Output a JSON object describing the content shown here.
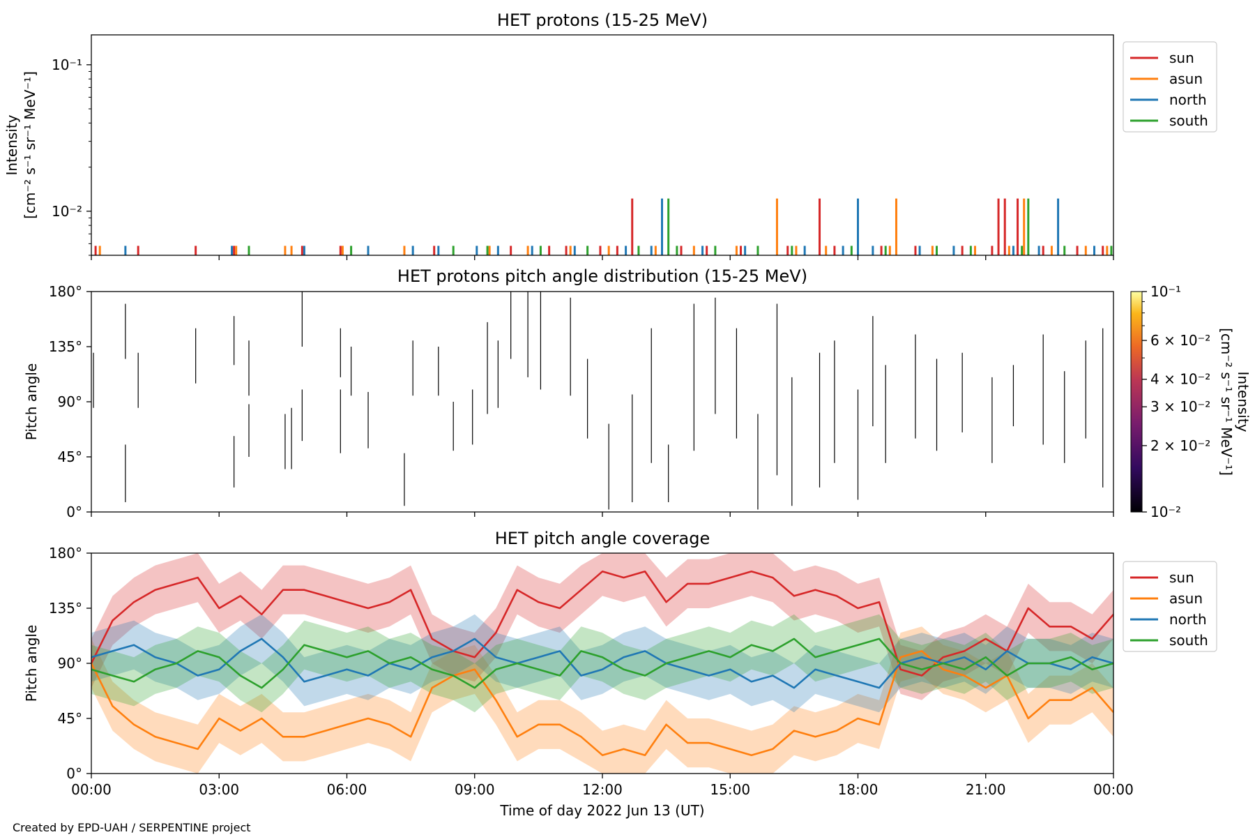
{
  "figure": {
    "credit": "Created by EPD-UAH / SERPENTINE project",
    "xlabel": "Time of day 2022 Jun 13 (UT)",
    "x_ticks": [
      "00:00",
      "03:00",
      "06:00",
      "09:00",
      "12:00",
      "15:00",
      "18:00",
      "21:00",
      "00:00"
    ],
    "x_range_hours": [
      0,
      24
    ]
  },
  "colors": {
    "sun": "#d62728",
    "asun": "#ff7f0e",
    "north": "#1f77b4",
    "south": "#2ca02c"
  },
  "chart_data": [
    {
      "type": "line",
      "title": "HET protons (15-25 MeV)",
      "ylabel_line1": "Intensity",
      "ylabel_line2": "[cm⁻² s⁻¹ sr⁻¹ MeV⁻¹]",
      "yscale": "log",
      "ylim": [
        0.005,
        0.16
      ],
      "y_ticks": [
        {
          "value": 0.1,
          "label": "10⁻¹"
        },
        {
          "value": 0.01,
          "label": "10⁻²"
        }
      ],
      "legend": [
        "sun",
        "asun",
        "north",
        "south"
      ],
      "legend_position": "outside-right-top",
      "spike_value": 0.0122,
      "base_value": 0.0058,
      "spikes": {
        "sun": [
          12.7,
          17.1,
          21.3,
          21.45,
          21.75
        ],
        "asun": [
          16.1,
          18.9,
          21.9
        ],
        "north": [
          13.4,
          18.0,
          22.7
        ],
        "south": [
          13.55,
          22.0
        ]
      },
      "base_events": {
        "sun": [
          0.1,
          1.1,
          2.45,
          3.35,
          4.95,
          5.85,
          8.05,
          9.85,
          10.75,
          11.15,
          11.95,
          12.35,
          13.85,
          14.45,
          15.25,
          16.35,
          17.45,
          18.55,
          19.35,
          20.45,
          21.15,
          22.35,
          23.15,
          23.75
        ],
        "asun": [
          0.2,
          3.4,
          4.55,
          4.7,
          5.9,
          7.35,
          9.35,
          10.25,
          11.25,
          12.15,
          13.25,
          14.15,
          15.15,
          16.55,
          17.25,
          18.75,
          19.75,
          20.75,
          21.55,
          22.55,
          23.35,
          23.85
        ],
        "north": [
          0.8,
          3.3,
          5.0,
          6.5,
          7.55,
          8.15,
          9.05,
          9.55,
          10.35,
          11.35,
          12.55,
          13.15,
          14.35,
          15.35,
          16.75,
          17.65,
          18.35,
          19.45,
          20.25,
          21.65,
          22.25,
          23.55
        ],
        "south": [
          3.7,
          6.1,
          8.5,
          9.3,
          10.55,
          11.65,
          12.85,
          13.75,
          14.65,
          15.65,
          16.45,
          17.85,
          18.65,
          19.85,
          20.65,
          21.85,
          22.85,
          23.95
        ]
      }
    },
    {
      "type": "heatmap",
      "title": "HET protons pitch angle distribution (15-25 MeV)",
      "ylabel": "Pitch angle",
      "ylim": [
        0,
        180
      ],
      "y_ticks": [
        "0°",
        "45°",
        "90°",
        "135°",
        "180°"
      ],
      "colorbar": {
        "label_line1": "Intensity",
        "label_line2": "[cm⁻² s⁻¹ sr⁻¹ MeV⁻¹]",
        "scale": "log",
        "range": [
          0.01,
          0.1
        ],
        "ticks": [
          {
            "value": 0.1,
            "label": "10⁻¹"
          },
          {
            "value": 0.06,
            "label": "6 × 10⁻²"
          },
          {
            "value": 0.04,
            "label": "4 × 10⁻²"
          },
          {
            "value": 0.03,
            "label": "3 × 10⁻²"
          },
          {
            "value": 0.02,
            "label": "2 × 10⁻²"
          },
          {
            "value": 0.01,
            "label": "10⁻²"
          }
        ]
      },
      "sample_segments": [
        [
          0.05,
          85,
          130
        ],
        [
          0.8,
          8,
          55
        ],
        [
          0.8,
          125,
          170
        ],
        [
          1.1,
          85,
          130
        ],
        [
          2.45,
          105,
          150
        ],
        [
          3.35,
          20,
          62
        ],
        [
          3.35,
          120,
          160
        ],
        [
          3.7,
          45,
          88
        ],
        [
          3.7,
          95,
          140
        ],
        [
          4.55,
          35,
          80
        ],
        [
          4.7,
          35,
          85
        ],
        [
          4.95,
          58,
          100
        ],
        [
          4.95,
          135,
          180
        ],
        [
          5.85,
          48,
          100
        ],
        [
          5.85,
          110,
          150
        ],
        [
          6.1,
          95,
          135
        ],
        [
          6.5,
          52,
          98
        ],
        [
          7.35,
          5,
          48
        ],
        [
          7.55,
          95,
          140
        ],
        [
          8.15,
          95,
          135
        ],
        [
          8.5,
          50,
          90
        ],
        [
          8.95,
          55,
          100
        ],
        [
          9.3,
          80,
          155
        ],
        [
          9.55,
          85,
          140
        ],
        [
          9.85,
          125,
          180
        ],
        [
          10.25,
          110,
          180
        ],
        [
          10.55,
          100,
          180
        ],
        [
          11.25,
          95,
          175
        ],
        [
          11.65,
          60,
          125
        ],
        [
          12.15,
          2,
          72
        ],
        [
          12.7,
          8,
          96
        ],
        [
          13.15,
          40,
          150
        ],
        [
          13.55,
          8,
          55
        ],
        [
          14.15,
          50,
          170
        ],
        [
          14.65,
          80,
          175
        ],
        [
          15.15,
          60,
          150
        ],
        [
          15.65,
          2,
          80
        ],
        [
          16.1,
          30,
          170
        ],
        [
          16.45,
          5,
          110
        ],
        [
          17.1,
          20,
          130
        ],
        [
          17.45,
          40,
          140
        ],
        [
          18.0,
          10,
          100
        ],
        [
          18.35,
          70,
          160
        ],
        [
          18.65,
          40,
          120
        ],
        [
          19.35,
          60,
          145
        ],
        [
          19.85,
          50,
          125
        ],
        [
          20.45,
          65,
          130
        ],
        [
          21.15,
          40,
          110
        ],
        [
          21.65,
          70,
          120
        ],
        [
          22.35,
          55,
          145
        ],
        [
          22.85,
          40,
          115
        ],
        [
          23.35,
          60,
          140
        ],
        [
          23.75,
          20,
          150
        ]
      ]
    },
    {
      "type": "area",
      "title": "HET pitch angle coverage",
      "ylabel": "Pitch angle",
      "ylim": [
        0,
        180
      ],
      "y_ticks": [
        "0°",
        "45°",
        "90°",
        "135°",
        "180°"
      ],
      "legend": [
        "sun",
        "asun",
        "north",
        "south"
      ],
      "legend_position": "outside-right-top",
      "band_halfwidth_deg": 20,
      "x": [
        0,
        0.5,
        1,
        1.5,
        2,
        2.5,
        3,
        3.5,
        4,
        4.5,
        5,
        5.5,
        6,
        6.5,
        7,
        7.5,
        8,
        8.5,
        9,
        9.5,
        10,
        10.5,
        11,
        11.5,
        12,
        12.5,
        13,
        13.5,
        14,
        14.5,
        15,
        15.5,
        16,
        16.5,
        17,
        17.5,
        18,
        18.5,
        19,
        19.5,
        20,
        20.5,
        21,
        21.5,
        22,
        22.5,
        23,
        23.5,
        24
      ],
      "series": [
        {
          "name": "sun",
          "values": [
            90,
            125,
            140,
            150,
            155,
            160,
            135,
            145,
            130,
            150,
            150,
            145,
            140,
            135,
            140,
            150,
            110,
            100,
            95,
            115,
            150,
            140,
            135,
            150,
            165,
            160,
            165,
            140,
            155,
            155,
            160,
            165,
            160,
            145,
            150,
            145,
            135,
            140,
            85,
            80,
            95,
            100,
            110,
            100,
            135,
            120,
            120,
            110,
            130
          ]
        },
        {
          "name": "asun",
          "values": [
            90,
            55,
            40,
            30,
            25,
            20,
            45,
            35,
            45,
            30,
            30,
            35,
            40,
            45,
            40,
            30,
            70,
            80,
            85,
            60,
            30,
            40,
            40,
            30,
            15,
            20,
            15,
            40,
            25,
            25,
            20,
            15,
            20,
            35,
            30,
            35,
            45,
            40,
            95,
            100,
            85,
            80,
            70,
            80,
            45,
            60,
            60,
            70,
            50
          ]
        },
        {
          "name": "north",
          "values": [
            95,
            100,
            105,
            95,
            90,
            80,
            85,
            100,
            110,
            95,
            75,
            80,
            85,
            80,
            90,
            85,
            95,
            100,
            110,
            95,
            90,
            95,
            100,
            80,
            85,
            95,
            100,
            90,
            85,
            80,
            85,
            75,
            80,
            70,
            85,
            80,
            75,
            70,
            90,
            95,
            90,
            95,
            85,
            100,
            90,
            90,
            85,
            95,
            90
          ]
        },
        {
          "name": "south",
          "values": [
            85,
            80,
            75,
            85,
            90,
            100,
            95,
            80,
            70,
            85,
            105,
            100,
            95,
            100,
            90,
            95,
            85,
            80,
            70,
            85,
            90,
            85,
            80,
            100,
            95,
            85,
            80,
            90,
            95,
            100,
            95,
            105,
            100,
            110,
            95,
            100,
            105,
            110,
            90,
            85,
            90,
            85,
            95,
            80,
            90,
            90,
            95,
            85,
            90
          ]
        }
      ]
    }
  ]
}
